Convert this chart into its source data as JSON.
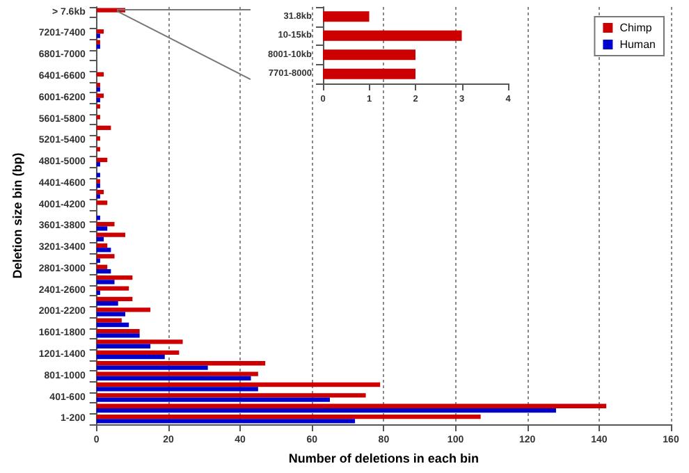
{
  "chart_data": [
    {
      "type": "bar",
      "orientation": "horizontal",
      "xlabel": "Number of deletions in each bin",
      "ylabel": "Deletion size bin (bp)",
      "categories": [
        "> 7.6kb",
        null,
        "7201-7400",
        null,
        "6801-7000",
        null,
        "6401-6600",
        null,
        "6001-6200",
        null,
        "5601-5800",
        null,
        "5201-5400",
        null,
        "4801-5000",
        null,
        "4401-4600",
        null,
        "4001-4200",
        null,
        "3601-3800",
        null,
        "3201-3400",
        null,
        "2801-3000",
        null,
        "2401-2600",
        null,
        "2001-2200",
        null,
        "1601-1800",
        null,
        "1201-1400",
        null,
        "801-1000",
        null,
        "401-600",
        null,
        "1-200"
      ],
      "series": [
        {
          "name": "Chimp",
          "color": "#cc0000",
          "values": [
            8,
            0,
            2,
            1,
            0,
            0,
            2,
            1,
            2,
            1,
            1,
            4,
            1,
            1,
            3,
            0,
            1,
            2,
            3,
            0,
            5,
            8,
            3,
            5,
            3,
            10,
            9,
            10,
            15,
            7,
            12,
            24,
            23,
            47,
            45,
            79,
            75,
            142,
            107
          ]
        },
        {
          "name": "Human",
          "color": "#0000cc",
          "values": [
            0,
            0,
            1,
            1,
            0,
            0,
            0,
            1,
            1,
            0,
            0,
            0,
            0,
            0,
            1,
            1,
            1,
            1,
            0,
            1,
            3,
            2,
            4,
            1,
            4,
            5,
            1,
            6,
            8,
            9,
            12,
            15,
            19,
            31,
            43,
            45,
            65,
            128,
            72
          ]
        }
      ],
      "xlim": [
        0,
        160
      ],
      "xticks": [
        0,
        20,
        40,
        60,
        80,
        100,
        120,
        140,
        160
      ],
      "grid": "x",
      "legend": "top right"
    },
    {
      "type": "bar",
      "orientation": "horizontal",
      "categories": [
        "31.8kb",
        "10-15kb",
        "8001-10kb",
        "7701-8000"
      ],
      "series": [
        {
          "color": "#cc0000",
          "values": [
            1,
            3,
            2,
            2
          ]
        }
      ],
      "xlim": [
        0,
        4
      ],
      "xticks": [
        0,
        1,
        2,
        3,
        4
      ]
    }
  ]
}
